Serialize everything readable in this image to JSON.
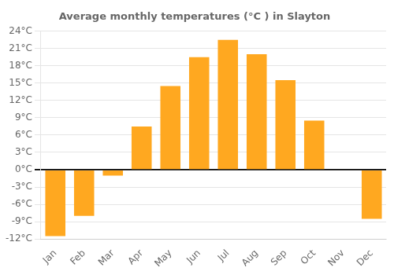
{
  "chart_data": {
    "type": "bar",
    "title": "Average monthly temperatures (°C ) in Slayton",
    "categories": [
      "Jan",
      "Feb",
      "Mar",
      "Apr",
      "May",
      "Jun",
      "Jul",
      "Aug",
      "Sep",
      "Oct",
      "Nov",
      "Dec"
    ],
    "values": [
      -11.5,
      -8.0,
      -1.0,
      7.5,
      14.5,
      19.5,
      22.5,
      20.0,
      15.5,
      8.5,
      0.0,
      -8.5
    ],
    "color": "#FFA820",
    "ylim": [
      -12,
      24
    ],
    "yticks": [
      {
        "value": -12,
        "label": "-12°C"
      },
      {
        "value": -9,
        "label": "-9°C"
      },
      {
        "value": -6,
        "label": "-6°C"
      },
      {
        "value": -3,
        "label": "-3°C"
      },
      {
        "value": 0,
        "label": "0°C"
      },
      {
        "value": 3,
        "label": "3°C"
      },
      {
        "value": 6,
        "label": "6°C"
      },
      {
        "value": 9,
        "label": "9°C"
      },
      {
        "value": 12,
        "label": "12°C"
      },
      {
        "value": 15,
        "label": "15°C"
      },
      {
        "value": 18,
        "label": "18°C"
      },
      {
        "value": 21,
        "label": "21°C"
      },
      {
        "value": 24,
        "label": "24°C"
      }
    ],
    "grid": true
  }
}
